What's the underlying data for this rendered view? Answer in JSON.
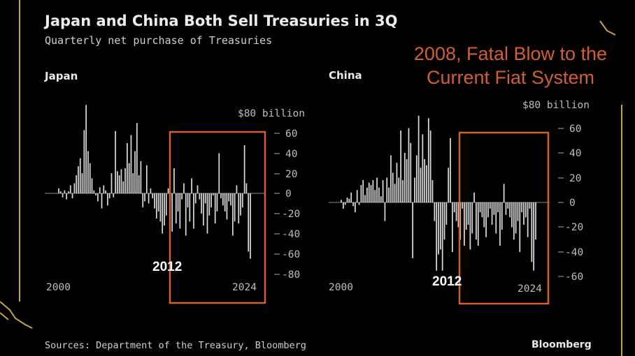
{
  "title": "Japan and China Both Sell Treasuries in 3Q",
  "subtitle": "Quarterly net purchase of Treasuries",
  "overlay_text": [
    "2008, Fatal Blow to the",
    "Current Fiat System"
  ],
  "source": "Sources: Department of the Treasury, Bloomberg",
  "brand": "Bloomberg",
  "colors": {
    "background": "#000000",
    "bars": "#d8d8d8",
    "highlight_box": "#d2602e",
    "overlay_text": "#d2602e",
    "gold_decoration": "#c9a24a"
  },
  "chart_data": [
    {
      "type": "bar",
      "title": "Japan",
      "x_tick_labels": [
        "2000",
        "2024"
      ],
      "y_tick_labels": [
        "$80 billion",
        "60",
        "40",
        "20",
        "0",
        "-20",
        "-40",
        "-60",
        "-80"
      ],
      "ylim": [
        -80,
        80
      ],
      "annotation": "2012",
      "highlight_box": {
        "from": "2012",
        "to": "2024",
        "label_position": "inside-bottom-left"
      },
      "x": [
        "2000Q1",
        "2000Q2",
        "2000Q3",
        "2000Q4",
        "2001Q1",
        "2001Q2",
        "2001Q3",
        "2001Q4",
        "2002Q1",
        "2002Q2",
        "2002Q3",
        "2002Q4",
        "2003Q1",
        "2003Q2",
        "2003Q3",
        "2003Q4",
        "2004Q1",
        "2004Q2",
        "2004Q3",
        "2004Q4",
        "2005Q1",
        "2005Q2",
        "2005Q3",
        "2005Q4",
        "2006Q1",
        "2006Q2",
        "2006Q3",
        "2006Q4",
        "2007Q1",
        "2007Q2",
        "2007Q3",
        "2007Q4",
        "2008Q1",
        "2008Q2",
        "2008Q3",
        "2008Q4",
        "2009Q1",
        "2009Q2",
        "2009Q3",
        "2009Q4",
        "2010Q1",
        "2010Q2",
        "2010Q3",
        "2010Q4",
        "2011Q1",
        "2011Q2",
        "2011Q3",
        "2011Q4",
        "2012Q1",
        "2012Q2",
        "2012Q3",
        "2012Q4",
        "2013Q1",
        "2013Q2",
        "2013Q3",
        "2013Q4",
        "2014Q1",
        "2014Q2",
        "2014Q3",
        "2014Q4",
        "2015Q1",
        "2015Q2",
        "2015Q3",
        "2015Q4",
        "2016Q1",
        "2016Q2",
        "2016Q3",
        "2016Q4",
        "2017Q1",
        "2017Q2",
        "2017Q3",
        "2017Q4",
        "2018Q1",
        "2018Q2",
        "2018Q3",
        "2018Q4",
        "2019Q1",
        "2019Q2",
        "2019Q3",
        "2019Q4",
        "2020Q1",
        "2020Q2",
        "2020Q3",
        "2020Q4",
        "2021Q1",
        "2021Q2",
        "2021Q3",
        "2021Q4",
        "2022Q1",
        "2022Q2",
        "2022Q3",
        "2022Q4",
        "2023Q1",
        "2023Q2",
        "2023Q3",
        "2023Q4",
        "2024Q1",
        "2024Q2",
        "2024Q3"
      ],
      "values": [
        5,
        2,
        -4,
        3,
        -6,
        2,
        8,
        -5,
        10,
        18,
        27,
        35,
        20,
        63,
        88,
        42,
        30,
        15,
        3,
        -2,
        -8,
        6,
        -15,
        8,
        3,
        -12,
        -5,
        20,
        -4,
        62,
        22,
        18,
        24,
        12,
        25,
        50,
        30,
        58,
        20,
        42,
        70,
        18,
        32,
        -14,
        -8,
        28,
        -10,
        5,
        -5,
        -15,
        -25,
        -18,
        -28,
        -40,
        -32,
        -22,
        5,
        -8,
        -38,
        25,
        -30,
        -18,
        -35,
        -6,
        10,
        -42,
        -14,
        -28,
        15,
        -35,
        -10,
        8,
        -6,
        -20,
        -32,
        -10,
        -40,
        -22,
        -14,
        -2,
        -30,
        -18,
        40,
        -5,
        -12,
        -18,
        -26,
        -8,
        -12,
        -42,
        -28,
        8,
        -30,
        -22,
        -14,
        48,
        10,
        -58,
        -65
      ]
    },
    {
      "type": "bar",
      "title": "China",
      "x_tick_labels": [
        "2000",
        "2024"
      ],
      "y_tick_labels": [
        "$80 billion",
        "60",
        "40",
        "20",
        "0",
        "-20",
        "-40",
        "-60"
      ],
      "ylim": [
        -60,
        80
      ],
      "annotation": "2012",
      "highlight_box": {
        "from": "2012",
        "to": "2024",
        "label_position": "below-left"
      },
      "x": [
        "2000Q1",
        "2000Q2",
        "2000Q3",
        "2000Q4",
        "2001Q1",
        "2001Q2",
        "2001Q3",
        "2001Q4",
        "2002Q1",
        "2002Q2",
        "2002Q3",
        "2002Q4",
        "2003Q1",
        "2003Q2",
        "2003Q3",
        "2003Q4",
        "2004Q1",
        "2004Q2",
        "2004Q3",
        "2004Q4",
        "2005Q1",
        "2005Q2",
        "2005Q3",
        "2005Q4",
        "2006Q1",
        "2006Q2",
        "2006Q3",
        "2006Q4",
        "2007Q1",
        "2007Q2",
        "2007Q3",
        "2007Q4",
        "2008Q1",
        "2008Q2",
        "2008Q3",
        "2008Q4",
        "2009Q1",
        "2009Q2",
        "2009Q3",
        "2009Q4",
        "2010Q1",
        "2010Q2",
        "2010Q3",
        "2010Q4",
        "2011Q1",
        "2011Q2",
        "2011Q3",
        "2011Q4",
        "2012Q1",
        "2012Q2",
        "2012Q3",
        "2012Q4",
        "2013Q1",
        "2013Q2",
        "2013Q3",
        "2013Q4",
        "2014Q1",
        "2014Q2",
        "2014Q3",
        "2014Q4",
        "2015Q1",
        "2015Q2",
        "2015Q3",
        "2015Q4",
        "2016Q1",
        "2016Q2",
        "2016Q3",
        "2016Q4",
        "2017Q1",
        "2017Q2",
        "2017Q3",
        "2017Q4",
        "2018Q1",
        "2018Q2",
        "2018Q3",
        "2018Q4",
        "2019Q1",
        "2019Q2",
        "2019Q3",
        "2019Q4",
        "2020Q1",
        "2020Q2",
        "2020Q3",
        "2020Q4",
        "2021Q1",
        "2021Q2",
        "2021Q3",
        "2021Q4",
        "2022Q1",
        "2022Q2",
        "2022Q3",
        "2022Q4",
        "2023Q1",
        "2023Q2",
        "2023Q3",
        "2023Q4",
        "2024Q1",
        "2024Q2",
        "2024Q3"
      ],
      "values": [
        2,
        -5,
        -2,
        4,
        3,
        8,
        -3,
        -8,
        10,
        -2,
        14,
        18,
        6,
        12,
        16,
        14,
        18,
        10,
        20,
        12,
        5,
        18,
        -15,
        20,
        12,
        38,
        24,
        15,
        32,
        20,
        58,
        18,
        40,
        35,
        60,
        48,
        -45,
        20,
        38,
        70,
        28,
        55,
        35,
        30,
        68,
        58,
        18,
        -15,
        -55,
        -42,
        -38,
        -55,
        -30,
        -18,
        28,
        52,
        -40,
        -8,
        -15,
        -20,
        -30,
        -5,
        -35,
        -22,
        -18,
        -38,
        -25,
        8,
        -30,
        -35,
        -8,
        -12,
        -20,
        -28,
        -12,
        -5,
        -18,
        -10,
        -25,
        -8,
        -35,
        -22,
        15,
        -10,
        -5,
        -12,
        -20,
        -30,
        -25,
        -15,
        -40,
        -8,
        -18,
        -12,
        -28,
        -5,
        -48,
        -55,
        -30
      ]
    }
  ]
}
